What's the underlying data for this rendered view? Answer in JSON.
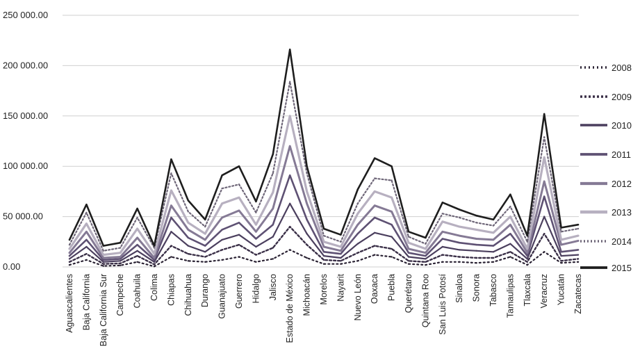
{
  "chart_data": {
    "type": "line",
    "ylim": [
      0,
      250000
    ],
    "yticks": [
      "0.00",
      "50 000.00",
      "100 000.00",
      "150 000.00",
      "200 000.00",
      "250 000.00"
    ],
    "ytick_values": [
      0,
      50000,
      100000,
      150000,
      200000,
      250000
    ],
    "grid": "horizontal",
    "legend_position": "right",
    "categories": [
      "Aguascalientes",
      "Baja California",
      "Baja California Sur",
      "Campeche",
      "Coahuila",
      "Colima",
      "Chiapas",
      "Chihuahua",
      "Durango",
      "Guanajuato",
      "Guerrero",
      "Hidalgo",
      "Jalisco",
      "Estado de México",
      "Michoacán",
      "Morelos",
      "Nayarit",
      "Nuevo León",
      "Oaxaca",
      "Puebla",
      "Querétaro",
      "Quintana Roo",
      "San Luis Potosí",
      "Sinaloa",
      "Sonora",
      "Tabasco",
      "Tamaulipas",
      "Tlaxcala",
      "Veracruz",
      "Yucatán",
      "Zacatecas"
    ],
    "series": [
      {
        "name": "2008",
        "color": "#2a2233",
        "dash": "2 4",
        "width": 2.2,
        "values": [
          2000,
          7000,
          1000,
          1500,
          5000,
          500,
          10000,
          6000,
          5000,
          7000,
          10000,
          5000,
          8000,
          17000,
          9000,
          3000,
          3000,
          6000,
          12000,
          10000,
          3000,
          2000,
          5000,
          5000,
          4000,
          5000,
          10000,
          2000,
          15000,
          4000,
          5000
        ]
      },
      {
        "name": "2009",
        "color": "#3a2f47",
        "dash": "3 3",
        "width": 2.4,
        "values": [
          5000,
          13000,
          3000,
          3500,
          11000,
          2500,
          21000,
          13000,
          10000,
          17000,
          22000,
          12000,
          19000,
          40000,
          22000,
          7000,
          6000,
          14000,
          21000,
          18000,
          6000,
          5000,
          12000,
          10000,
          9000,
          9000,
          15000,
          5000,
          33000,
          6000,
          8000
        ]
      },
      {
        "name": "2010",
        "color": "#4b3f5e",
        "dash": "",
        "width": 2.2,
        "values": [
          8000,
          20000,
          5000,
          6000,
          16000,
          5000,
          35000,
          21000,
          15000,
          27000,
          32000,
          20000,
          30000,
          63000,
          33000,
          11000,
          9000,
          23000,
          34000,
          30000,
          10000,
          8000,
          20000,
          17000,
          16000,
          15000,
          23000,
          8000,
          50000,
          11000,
          12000
        ]
      },
      {
        "name": "2011",
        "color": "#5e5173",
        "dash": "",
        "width": 2.6,
        "values": [
          11000,
          27000,
          7000,
          8000,
          22000,
          7000,
          49000,
          29000,
          21000,
          37000,
          44000,
          28000,
          42000,
          91000,
          47000,
          15000,
          13000,
          33000,
          49000,
          42000,
          14000,
          11000,
          28000,
          24000,
          22000,
          21000,
          33000,
          11000,
          70000,
          15000,
          17000
        ]
      },
      {
        "name": "2012",
        "color": "#857a95",
        "dash": "",
        "width": 3.0,
        "values": [
          14000,
          35000,
          9000,
          10000,
          29000,
          9000,
          61000,
          37000,
          27000,
          49000,
          56000,
          35000,
          58000,
          120000,
          63000,
          20000,
          16000,
          42000,
          61000,
          55000,
          18000,
          14000,
          35000,
          31000,
          28000,
          27000,
          42000,
          14000,
          85000,
          22000,
          26000
        ]
      },
      {
        "name": "2013",
        "color": "#b7b0c0",
        "dash": "",
        "width": 3.2,
        "values": [
          18000,
          43000,
          12000,
          14000,
          38000,
          13000,
          76000,
          44000,
          33000,
          63000,
          69000,
          42000,
          74000,
          150000,
          75000,
          25000,
          20000,
          53000,
          75000,
          69000,
          24000,
          18000,
          45000,
          40000,
          37000,
          34000,
          50000,
          18000,
          109000,
          27000,
          31000
        ]
      },
      {
        "name": "2014",
        "color": "#6e6678",
        "dash": "2 3",
        "width": 2.2,
        "values": [
          22000,
          54000,
          16000,
          19000,
          49000,
          19000,
          93000,
          55000,
          40000,
          78000,
          82000,
          54000,
          93000,
          184000,
          93000,
          31000,
          25000,
          63000,
          88000,
          86000,
          30000,
          23000,
          53000,
          49000,
          44000,
          41000,
          60000,
          25000,
          129000,
          35000,
          38000
        ]
      },
      {
        "name": "2015",
        "color": "#1e1e1e",
        "dash": "",
        "width": 2.6,
        "values": [
          27000,
          62000,
          21000,
          24000,
          58000,
          21000,
          107000,
          66000,
          47000,
          91000,
          100000,
          65000,
          112000,
          216000,
          100000,
          38000,
          32000,
          77000,
          108000,
          100000,
          35000,
          29000,
          64000,
          57000,
          51000,
          47000,
          72000,
          31000,
          152000,
          39000,
          42000
        ]
      }
    ]
  }
}
